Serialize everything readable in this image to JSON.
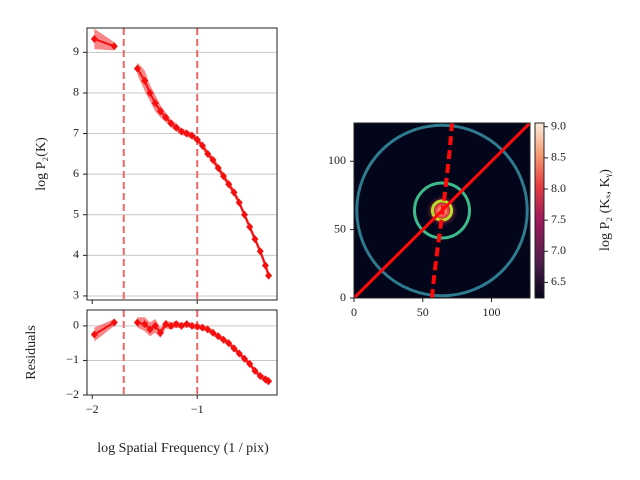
{
  "chart_data": [
    {
      "type": "line",
      "ylabel": "log P₂(K)",
      "x": [
        -1.98,
        -1.79,
        -1.68,
        -1.57,
        -1.5,
        -1.45,
        -1.4,
        -1.35,
        -1.3,
        -1.25,
        -1.2,
        -1.15,
        -1.1,
        -1.05,
        -1.0,
        -0.95,
        -0.9,
        -0.85,
        -0.8,
        -0.75,
        -0.7,
        -0.65,
        -0.6,
        -0.55,
        -0.5,
        -0.45,
        -0.4,
        -0.35,
        -0.32
      ],
      "series": [
        {
          "color": "#f50f0f",
          "values": [
            9.33,
            9.15,
            null,
            8.6,
            8.3,
            8.0,
            7.75,
            7.55,
            7.4,
            7.25,
            7.15,
            7.05,
            7.0,
            6.95,
            6.85,
            6.7,
            6.5,
            6.35,
            6.15,
            5.95,
            5.75,
            5.55,
            5.3,
            5.0,
            4.7,
            4.4,
            4.1,
            3.75,
            3.5
          ],
          "errors": [
            0.25,
            0.1,
            null,
            0.15,
            0.25,
            0.2,
            0.2,
            0.15,
            0.12,
            0.1,
            0.1,
            0.08,
            0.08,
            0.08,
            0.08,
            0.08,
            0.08,
            0.08,
            0.08,
            0.08,
            0.08,
            0.08,
            0.08,
            0.08,
            0.08,
            0.08,
            0.08,
            0.1,
            0.12
          ]
        }
      ],
      "vlines": [
        -1.7,
        -1.0
      ],
      "vline_color": "#ee6666",
      "xlim": [
        -2.05,
        -0.24
      ],
      "ylim": [
        2.9,
        9.6
      ],
      "yticks": [
        3,
        4,
        5,
        6,
        7,
        8,
        9
      ],
      "grid": true
    },
    {
      "type": "line",
      "ylabel": "Residuals",
      "xlabel": "log Spatial Frequency (1 / pix)",
      "x": [
        -1.98,
        -1.79,
        -1.68,
        -1.57,
        -1.5,
        -1.45,
        -1.4,
        -1.35,
        -1.3,
        -1.25,
        -1.2,
        -1.15,
        -1.1,
        -1.05,
        -1.0,
        -0.95,
        -0.9,
        -0.85,
        -0.8,
        -0.75,
        -0.7,
        -0.65,
        -0.6,
        -0.55,
        -0.5,
        -0.45,
        -0.4,
        -0.35,
        -0.32
      ],
      "series": [
        {
          "color": "#f50f0f",
          "values": [
            -0.25,
            0.1,
            null,
            0.1,
            0.05,
            -0.1,
            0.0,
            -0.2,
            0.05,
            0.0,
            0.05,
            0.0,
            0.05,
            0.0,
            -0.02,
            -0.05,
            -0.1,
            -0.2,
            -0.3,
            -0.4,
            -0.5,
            -0.65,
            -0.8,
            -0.95,
            -1.1,
            -1.3,
            -1.45,
            -1.55,
            -1.6
          ],
          "errors": [
            0.2,
            0.1,
            null,
            0.15,
            0.2,
            0.2,
            0.2,
            0.15,
            0.12,
            0.1,
            0.1,
            0.08,
            0.08,
            0.08,
            0.08,
            0.08,
            0.08,
            0.08,
            0.08,
            0.08,
            0.08,
            0.08,
            0.08,
            0.08,
            0.08,
            0.08,
            0.08,
            0.1,
            0.12
          ]
        }
      ],
      "vlines": [
        -1.7,
        -1.0
      ],
      "vline_color": "#ee6666",
      "xlim": [
        -2.05,
        -0.24
      ],
      "ylim": [
        -2,
        0.46
      ],
      "xticks": [
        {
          "value": -2,
          "label": "−2"
        },
        {
          "value": -1,
          "label": "−1"
        }
      ],
      "yticks": [
        {
          "value": -2,
          "label": "−2"
        },
        {
          "value": -1,
          "label": "−1"
        },
        0
      ],
      "grid": true
    },
    {
      "type": "image",
      "background": "#03051a",
      "xlim": [
        0,
        128
      ],
      "ylim": [
        0,
        128
      ],
      "xticks": [
        0,
        50,
        100
      ],
      "yticks": [
        0,
        50,
        100
      ],
      "circles": [
        {
          "center": [
            64,
            64
          ],
          "radius": 62,
          "color": "#2e7a8e"
        },
        {
          "center": [
            64,
            64
          ],
          "radius": 20,
          "color": "#3dbb8a"
        },
        {
          "center": [
            64,
            64
          ],
          "radius": 7,
          "color": "#b8de29"
        }
      ],
      "colorbar": {
        "label": "log P₂ (Kₓ, Kᵧ)",
        "clim": [
          6.25,
          9.06
        ],
        "ticks": [
          6.5,
          {
            "value": 7,
            "label": "7.0"
          },
          7.5,
          {
            "value": 8,
            "label": "8.0"
          },
          8.5,
          {
            "value": 9,
            "label": "9.0"
          }
        ]
      }
    }
  ]
}
